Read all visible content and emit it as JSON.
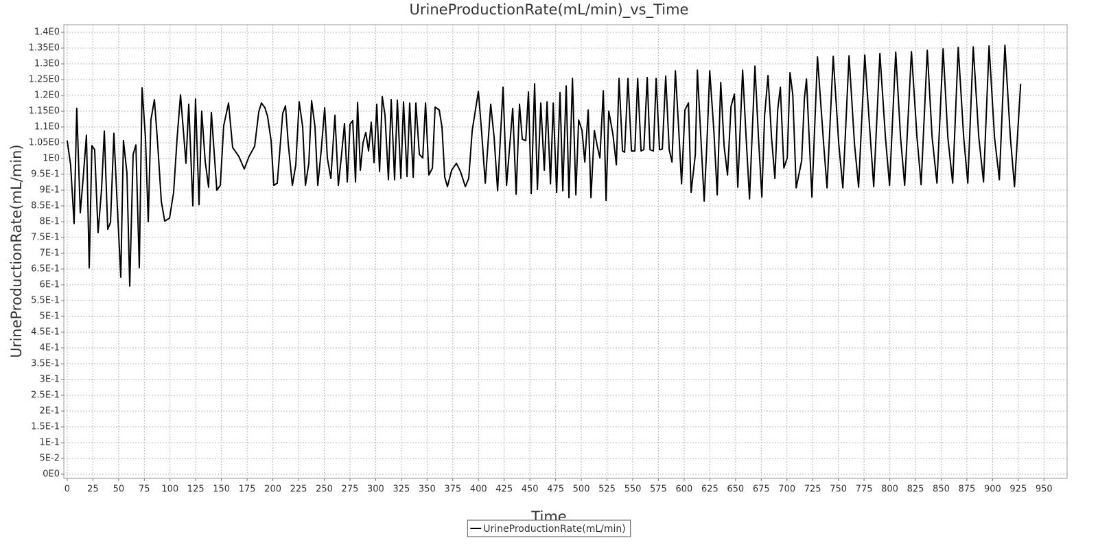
{
  "chart_data": {
    "type": "line",
    "title": "UrineProductionRate(mL/min)_vs_Time",
    "x_label": "Time",
    "y_label": "UrineProductionRate(mL/min)",
    "grid": true,
    "legend": "bottom",
    "xlim": [
      -3.3,
      972.5
    ],
    "ylim": [
      -0.013,
      1.424
    ],
    "xticks": [
      0,
      25,
      50,
      75,
      100,
      125,
      150,
      175,
      200,
      225,
      250,
      275,
      300,
      325,
      350,
      375,
      400,
      425,
      450,
      475,
      500,
      525,
      550,
      575,
      600,
      625,
      650,
      675,
      700,
      725,
      750,
      775,
      800,
      825,
      850,
      875,
      900,
      925,
      950
    ],
    "yticks": [
      {
        "value": 0,
        "label": "0E0"
      },
      {
        "value": 0.05,
        "label": "5E-2"
      },
      {
        "value": 0.1,
        "label": "1E-1"
      },
      {
        "value": 0.15,
        "label": "1.5E-1"
      },
      {
        "value": 0.2,
        "label": "2E-1"
      },
      {
        "value": 0.25,
        "label": "2.5E-1"
      },
      {
        "value": 0.3,
        "label": "3E-1"
      },
      {
        "value": 0.35,
        "label": "3.5E-1"
      },
      {
        "value": 0.4,
        "label": "4E-1"
      },
      {
        "value": 0.45,
        "label": "4.5E-1"
      },
      {
        "value": 0.5,
        "label": "5E-1"
      },
      {
        "value": 0.55,
        "label": "5.5E-1"
      },
      {
        "value": 0.6,
        "label": "6E-1"
      },
      {
        "value": 0.65,
        "label": "6.5E-1"
      },
      {
        "value": 0.7,
        "label": "7E-1"
      },
      {
        "value": 0.75,
        "label": "7.5E-1"
      },
      {
        "value": 0.8,
        "label": "8E-1"
      },
      {
        "value": 0.85,
        "label": "8.5E-1"
      },
      {
        "value": 0.9,
        "label": "9E-1"
      },
      {
        "value": 0.95,
        "label": "9.5E-1"
      },
      {
        "value": 1,
        "label": "1E0"
      },
      {
        "value": 1.05,
        "label": "1.05E0"
      },
      {
        "value": 1.1,
        "label": "1.1E0"
      },
      {
        "value": 1.15,
        "label": "1.15E0"
      },
      {
        "value": 1.2,
        "label": "1.2E0"
      },
      {
        "value": 1.25,
        "label": "1.25E0"
      },
      {
        "value": 1.3,
        "label": "1.3E0"
      },
      {
        "value": 1.35,
        "label": "1.35E0"
      },
      {
        "value": 1.4,
        "label": "1.4E0"
      }
    ],
    "x": [
      0,
      3.3,
      6.7,
      9.3,
      12.7,
      15.4,
      18.7,
      21.4,
      24.0,
      26.7,
      30.0,
      33.4,
      36.1,
      39.4,
      42.1,
      45.4,
      48.7,
      52.1,
      54.7,
      58.1,
      60.8,
      64.1,
      66.8,
      70.1,
      72.8,
      76.1,
      78.8,
      81.4,
      84.8,
      88.1,
      91.5,
      94.8,
      99.5,
      103.5,
      106.8,
      110.2,
      115.5,
      118.2,
      122.2,
      124.8,
      128.2,
      130.8,
      134.2,
      137.5,
      140.2,
      145.5,
      148.9,
      152.2,
      156.9,
      160.9,
      166.9,
      172.2,
      176.9,
      182.3,
      186.3,
      188.9,
      192.3,
      194.9,
      198.3,
      200.9,
      204.3,
      209.6,
      212.3,
      215.0,
      219.0,
      222.3,
      225.6,
      229.0,
      231.7,
      235.0,
      237.7,
      241.0,
      243.7,
      247.0,
      250.4,
      253.0,
      256.4,
      260.4,
      263.7,
      266.4,
      269.7,
      272.4,
      275.1,
      277.7,
      280.4,
      282.4,
      285.1,
      287.7,
      290.4,
      293.1,
      295.7,
      298.4,
      301.1,
      303.8,
      306.4,
      309.1,
      312.4,
      315.1,
      318.4,
      321.1,
      324.5,
      327.1,
      330.5,
      333.1,
      336.5,
      339.1,
      342.5,
      345.8,
      348.5,
      351.8,
      355.2,
      357.8,
      361.8,
      364.5,
      367.2,
      369.8,
      373.9,
      378.5,
      382.5,
      387.2,
      390.5,
      393.9,
      399.9,
      403.2,
      406.6,
      411.9,
      415.2,
      418.6,
      423.9,
      427.3,
      433.3,
      436.6,
      439.9,
      442.6,
      446.0,
      448.6,
      451.3,
      454.6,
      457.3,
      460.6,
      464.0,
      466.7,
      470.0,
      472.7,
      476.0,
      479.3,
      482.0,
      485.3,
      488.0,
      491.4,
      494.7,
      497.4,
      500.7,
      503.4,
      506.7,
      509.4,
      512.7,
      515.4,
      518.1,
      521.4,
      524.1,
      526.7,
      530.7,
      534.1,
      536.7,
      540.1,
      542.1,
      545.4,
      548.8,
      552.1,
      554.8,
      558.1,
      560.8,
      564.1,
      566.8,
      570.1,
      572.8,
      576.1,
      578.8,
      582.1,
      585.5,
      588.2,
      591.5,
      594.8,
      597.5,
      600.8,
      604.2,
      606.8,
      610.9,
      612.9,
      616.2,
      619.5,
      622.2,
      624.9,
      628.9,
      632.2,
      635.6,
      638.9,
      642.2,
      645.6,
      648.9,
      652.2,
      656.9,
      660.3,
      663.6,
      668.9,
      672.3,
      675.6,
      678.3,
      681.6,
      685.0,
      688.3,
      691.0,
      693.6,
      697.0,
      700.3,
      703.0,
      705.7,
      709.0,
      714.3,
      717.0,
      719.0,
      724.3,
      729.7,
      735.7,
      739.0,
      745.0,
      750.4,
      754.4,
      760.4,
      765.7,
      769.7,
      775.7,
      781.1,
      784.4,
      790.4,
      795.8,
      799.8,
      805.8,
      810.5,
      814.5,
      821.1,
      826.5,
      830.5,
      836.5,
      841.2,
      845.9,
      851.9,
      856.5,
      861.2,
      866.6,
      871.9,
      875.9,
      881.2,
      886.6,
      891.2,
      896.6,
      901.9,
      906.6,
      912.0,
      917.3,
      921.3,
      927.3
    ],
    "series": [
      {
        "name": "UrineProductionRate(mL/min)",
        "color": "#000000",
        "values": [
          1.057,
          0.98,
          0.794,
          1.159,
          0.828,
          0.933,
          1.074,
          0.654,
          1.041,
          1.028,
          0.765,
          0.902,
          1.087,
          0.776,
          0.798,
          1.08,
          0.85,
          0.624,
          1.057,
          0.954,
          0.596,
          1.013,
          1.043,
          0.654,
          1.224,
          1.067,
          0.8,
          1.122,
          1.187,
          1.041,
          0.865,
          0.802,
          0.811,
          0.893,
          1.061,
          1.202,
          0.985,
          1.172,
          0.85,
          1.189,
          0.854,
          1.15,
          0.991,
          0.909,
          1.146,
          0.9,
          0.915,
          1.104,
          1.176,
          1.035,
          1.007,
          0.967,
          1.007,
          1.039,
          1.148,
          1.176,
          1.161,
          1.133,
          1.057,
          0.915,
          0.922,
          1.143,
          1.167,
          1.046,
          0.915,
          0.98,
          1.18,
          1.1,
          0.915,
          0.985,
          1.183,
          1.1,
          0.915,
          1.024,
          1.161,
          1.002,
          0.937,
          1.137,
          0.915,
          0.998,
          1.111,
          0.926,
          1.109,
          1.12,
          0.926,
          1.178,
          0.963,
          1.05,
          1.083,
          1.024,
          1.115,
          0.987,
          1.172,
          0.959,
          1.196,
          1.137,
          0.933,
          1.187,
          0.933,
          1.185,
          0.937,
          1.18,
          0.943,
          1.176,
          0.941,
          1.176,
          1.013,
          1.002,
          1.176,
          0.948,
          0.97,
          1.163,
          1.154,
          1.1,
          0.941,
          0.911,
          0.963,
          0.985,
          0.959,
          0.911,
          0.937,
          1.089,
          1.213,
          1.078,
          0.922,
          1.172,
          1.067,
          0.898,
          1.226,
          0.915,
          1.159,
          0.887,
          1.172,
          1.061,
          1.057,
          1.211,
          0.889,
          1.237,
          0.902,
          1.176,
          0.963,
          1.18,
          0.92,
          1.176,
          0.893,
          1.209,
          0.898,
          1.23,
          0.876,
          1.254,
          0.885,
          1.122,
          1.089,
          0.989,
          1.154,
          0.876,
          1.089,
          1.041,
          1.002,
          1.215,
          0.867,
          1.15,
          1.078,
          0.98,
          1.254,
          1.024,
          1.02,
          1.254,
          1.024,
          1.024,
          1.254,
          1.024,
          1.028,
          1.257,
          1.028,
          1.024,
          1.254,
          1.028,
          1.03,
          1.261,
          1.028,
          0.989,
          1.278,
          1.089,
          0.92,
          1.154,
          1.176,
          0.893,
          1.013,
          1.28,
          1.072,
          0.865,
          1.05,
          1.278,
          1.089,
          0.885,
          1.241,
          1.039,
          0.948,
          1.165,
          1.204,
          0.909,
          1.28,
          1.067,
          0.872,
          1.293,
          1.067,
          0.878,
          1.137,
          1.263,
          1.067,
          0.937,
          1.154,
          1.226,
          0.97,
          1.002,
          1.272,
          1.202,
          0.907,
          0.993,
          1.191,
          1.252,
          0.878,
          1.322,
          1.046,
          0.907,
          1.324,
          1.046,
          0.907,
          1.326,
          1.046,
          0.909,
          1.328,
          1.067,
          0.911,
          1.333,
          1.067,
          0.915,
          1.337,
          1.067,
          0.915,
          1.339,
          1.067,
          0.917,
          1.343,
          1.067,
          0.922,
          1.348,
          1.067,
          0.922,
          1.352,
          1.067,
          0.922,
          1.354,
          1.067,
          0.926,
          1.357,
          1.067,
          0.933,
          1.359,
          1.067,
          0.911,
          1.237
        ]
      }
    ]
  }
}
